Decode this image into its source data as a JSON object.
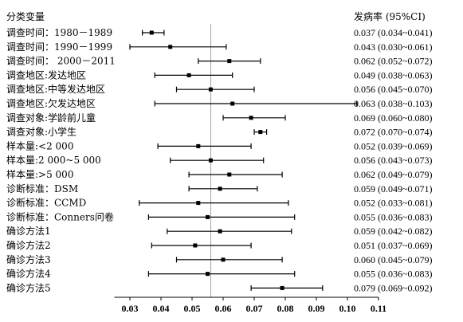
{
  "chart_data": {
    "type": "forest",
    "header_left": "分类变量",
    "header_right": "发病率 (95%CI)",
    "xlim": [
      0.025,
      0.11
    ],
    "x_ticks": [
      "0.03",
      "0.04",
      "0.05",
      "0.06",
      "0.07",
      "0.08",
      "0.09",
      "0.10",
      "0.11"
    ],
    "reference_line": 0.056,
    "rows": [
      {
        "label": "调查时间：1980－1989",
        "estimate": 0.037,
        "ci_low": 0.034,
        "ci_high": 0.041,
        "text": "0.037 (0.034~0.041)"
      },
      {
        "label": "调查时间：1990－1999",
        "estimate": 0.043,
        "ci_low": 0.03,
        "ci_high": 0.061,
        "text": "0.043 (0.030~0.061)"
      },
      {
        "label": "调查时间： 2000－2011",
        "estimate": 0.062,
        "ci_low": 0.052,
        "ci_high": 0.072,
        "text": "0.062 (0.052~0.072)"
      },
      {
        "label": "调查地区:发达地区",
        "estimate": 0.049,
        "ci_low": 0.038,
        "ci_high": 0.063,
        "text": "0.049 (0.038~0.063)"
      },
      {
        "label": "调查地区:中等发达地区",
        "estimate": 0.056,
        "ci_low": 0.045,
        "ci_high": 0.07,
        "text": "0.056 (0.045~0.070)"
      },
      {
        "label": "调查地区:欠发达地区",
        "estimate": 0.063,
        "ci_low": 0.038,
        "ci_high": 0.103,
        "text": "0.063 (0.038~0.103)"
      },
      {
        "label": "调查对象:学龄前儿童",
        "estimate": 0.069,
        "ci_low": 0.06,
        "ci_high": 0.08,
        "text": "0.069 (0.060~0.080)"
      },
      {
        "label": "调查对象:小学生",
        "estimate": 0.072,
        "ci_low": 0.07,
        "ci_high": 0.074,
        "text": "0.072 (0.070~0.074)"
      },
      {
        "label": "样本量:<2 000",
        "estimate": 0.052,
        "ci_low": 0.039,
        "ci_high": 0.069,
        "text": "0.052 (0.039~0.069)"
      },
      {
        "label": "样本量:2 000~5 000",
        "estimate": 0.056,
        "ci_low": 0.043,
        "ci_high": 0.073,
        "text": "0.056 (0.043~0.073)"
      },
      {
        "label": "样本量:>5 000",
        "estimate": 0.062,
        "ci_low": 0.049,
        "ci_high": 0.079,
        "text": "0.062 (0.049~0.079)"
      },
      {
        "label": "诊断标准：DSM",
        "estimate": 0.059,
        "ci_low": 0.049,
        "ci_high": 0.071,
        "text": "0.059 (0.049~0.071)"
      },
      {
        "label": "诊断标准：CCMD",
        "estimate": 0.052,
        "ci_low": 0.033,
        "ci_high": 0.081,
        "text": "0.052 (0.033~0.081)"
      },
      {
        "label": "诊断标准：Conners问卷",
        "estimate": 0.055,
        "ci_low": 0.036,
        "ci_high": 0.083,
        "text": "0.055 (0.036~0.083)"
      },
      {
        "label": "确诊方法1",
        "estimate": 0.059,
        "ci_low": 0.042,
        "ci_high": 0.082,
        "text": "0.059 (0.042~0.082)"
      },
      {
        "label": "确诊方法2",
        "estimate": 0.051,
        "ci_low": 0.037,
        "ci_high": 0.069,
        "text": "0.051 (0.037~0.069)"
      },
      {
        "label": "确诊方法3",
        "estimate": 0.06,
        "ci_low": 0.045,
        "ci_high": 0.079,
        "text": "0.060 (0.045~0.079)"
      },
      {
        "label": "确诊方法4",
        "estimate": 0.055,
        "ci_low": 0.036,
        "ci_high": 0.083,
        "text": "0.055 (0.036~0.083)"
      },
      {
        "label": "确诊方法5",
        "estimate": 0.079,
        "ci_low": 0.069,
        "ci_high": 0.092,
        "text": "0.079 (0.069~0.092)"
      }
    ]
  }
}
